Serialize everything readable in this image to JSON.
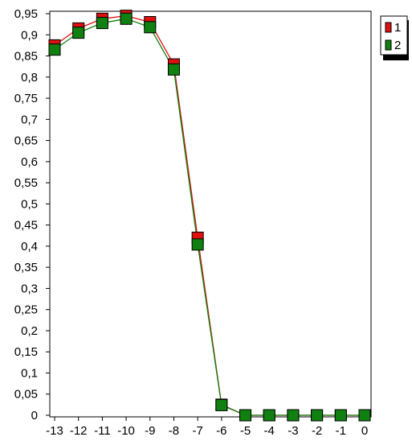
{
  "chart_data": {
    "type": "line",
    "title": "",
    "xlabel": "",
    "ylabel": "",
    "x": [
      -13,
      -12,
      -11,
      -10,
      -9,
      -8,
      -7,
      -6,
      -5,
      -4,
      -3,
      -2,
      -1,
      0
    ],
    "xticks": [
      "-13",
      "-12",
      "-11",
      "-10",
      "-9",
      "-8",
      "-7",
      "-6",
      "-5",
      "-4",
      "-3",
      "-2",
      "-1",
      "0"
    ],
    "yticks": [
      "0",
      "0,05",
      "0,1",
      "0,15",
      "0,2",
      "0,25",
      "0,3",
      "0,35",
      "0,4",
      "0,45",
      "0,5",
      "0,55",
      "0,6",
      "0,65",
      "0,7",
      "0,75",
      "0,8",
      "0,85",
      "0,9",
      "0,95"
    ],
    "ylim": [
      0,
      0.95
    ],
    "xlim": [
      -13,
      0
    ],
    "grid": true,
    "legend_position": "top-right",
    "series": [
      {
        "name": "1",
        "color": "#e01010",
        "values": [
          0.875,
          0.915,
          0.938,
          0.945,
          0.93,
          0.83,
          0.42,
          0.025,
          0.0,
          0.0,
          0.0,
          0.0,
          0.0,
          0.0
        ]
      },
      {
        "name": "2",
        "color": "#108010",
        "values": [
          0.865,
          0.905,
          0.928,
          0.938,
          0.918,
          0.818,
          0.404,
          0.024,
          0.0,
          0.0,
          0.0,
          0.0,
          0.0,
          0.0
        ]
      }
    ]
  }
}
